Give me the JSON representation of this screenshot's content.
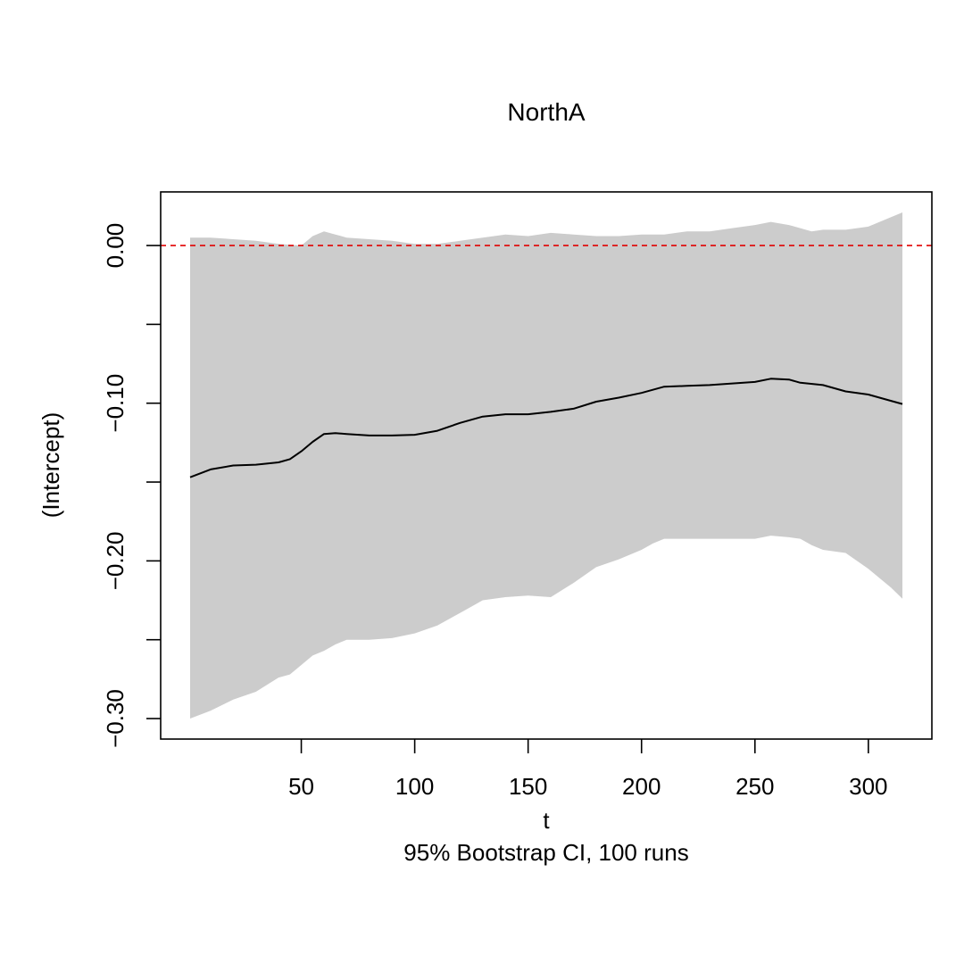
{
  "chart_data": {
    "type": "area",
    "title": "NorthA",
    "xlabel": "t",
    "ylabel": "(Intercept)",
    "subtitle": "95% Bootstrap CI, 100 runs",
    "xlim": [
      -12,
      328
    ],
    "ylim": [
      -0.313,
      0.034
    ],
    "x_ticks": [
      50,
      100,
      150,
      200,
      250,
      300
    ],
    "x_tick_labels": [
      "50",
      "100",
      "150",
      "200",
      "250",
      "300"
    ],
    "y_ticks": [
      0.0,
      -0.05,
      -0.1,
      -0.15,
      -0.2,
      -0.25,
      -0.3
    ],
    "y_tick_labels": [
      "0.00",
      "",
      "−0.10",
      "",
      "−0.20",
      "",
      "−0.30"
    ],
    "grid": false,
    "reference_line": {
      "y": 0,
      "color": "#e00000",
      "style": "dashed"
    },
    "colors": {
      "band": "#cccccc",
      "estimate": "#000000",
      "reference": "#e00000",
      "frame": "#000000"
    },
    "series": [
      {
        "role": "estimate",
        "x": [
          1,
          10,
          20,
          30,
          40,
          45,
          50,
          55,
          60,
          65,
          70,
          80,
          90,
          100,
          110,
          120,
          130,
          140,
          150,
          160,
          170,
          180,
          190,
          200,
          210,
          220,
          230,
          240,
          250,
          257,
          265,
          270,
          280,
          290,
          300,
          310,
          315
        ],
        "y": [
          -0.147,
          -0.142,
          -0.1395,
          -0.139,
          -0.1375,
          -0.1355,
          -0.1305,
          -0.1245,
          -0.1195,
          -0.119,
          -0.1195,
          -0.1205,
          -0.1205,
          -0.12,
          -0.1175,
          -0.1125,
          -0.1085,
          -0.107,
          -0.107,
          -0.1055,
          -0.1035,
          -0.099,
          -0.0965,
          -0.0935,
          -0.0895,
          -0.089,
          -0.0885,
          -0.0875,
          -0.0865,
          -0.0845,
          -0.085,
          -0.087,
          -0.0885,
          -0.0925,
          -0.0945,
          -0.0985,
          -0.1005
        ]
      },
      {
        "role": "upper",
        "x": [
          1,
          10,
          20,
          30,
          40,
          50,
          55,
          60,
          65,
          70,
          80,
          90,
          100,
          110,
          120,
          130,
          140,
          150,
          160,
          170,
          180,
          190,
          200,
          210,
          220,
          230,
          240,
          250,
          257,
          265,
          270,
          275,
          280,
          290,
          300,
          310,
          315
        ],
        "y": [
          0.005,
          0.005,
          0.004,
          0.003,
          0.001,
          0.0,
          0.006,
          0.009,
          0.007,
          0.005,
          0.004,
          0.003,
          0.001,
          0.001,
          0.003,
          0.005,
          0.007,
          0.006,
          0.008,
          0.007,
          0.006,
          0.006,
          0.007,
          0.007,
          0.009,
          0.009,
          0.011,
          0.013,
          0.015,
          0.013,
          0.011,
          0.009,
          0.01,
          0.01,
          0.012,
          0.018,
          0.021
        ]
      },
      {
        "role": "lower",
        "x": [
          1,
          10,
          20,
          30,
          40,
          45,
          50,
          55,
          60,
          65,
          70,
          80,
          90,
          100,
          110,
          120,
          130,
          140,
          150,
          160,
          170,
          180,
          190,
          200,
          205,
          210,
          220,
          230,
          240,
          250,
          257,
          265,
          270,
          275,
          280,
          290,
          300,
          310,
          315
        ],
        "y": [
          -0.3,
          -0.295,
          -0.288,
          -0.283,
          -0.274,
          -0.272,
          -0.266,
          -0.26,
          -0.257,
          -0.253,
          -0.25,
          -0.25,
          -0.249,
          -0.246,
          -0.241,
          -0.233,
          -0.225,
          -0.223,
          -0.222,
          -0.223,
          -0.214,
          -0.204,
          -0.199,
          -0.193,
          -0.189,
          -0.186,
          -0.186,
          -0.186,
          -0.186,
          -0.186,
          -0.184,
          -0.185,
          -0.186,
          -0.19,
          -0.193,
          -0.195,
          -0.205,
          -0.217,
          -0.224
        ]
      }
    ]
  }
}
